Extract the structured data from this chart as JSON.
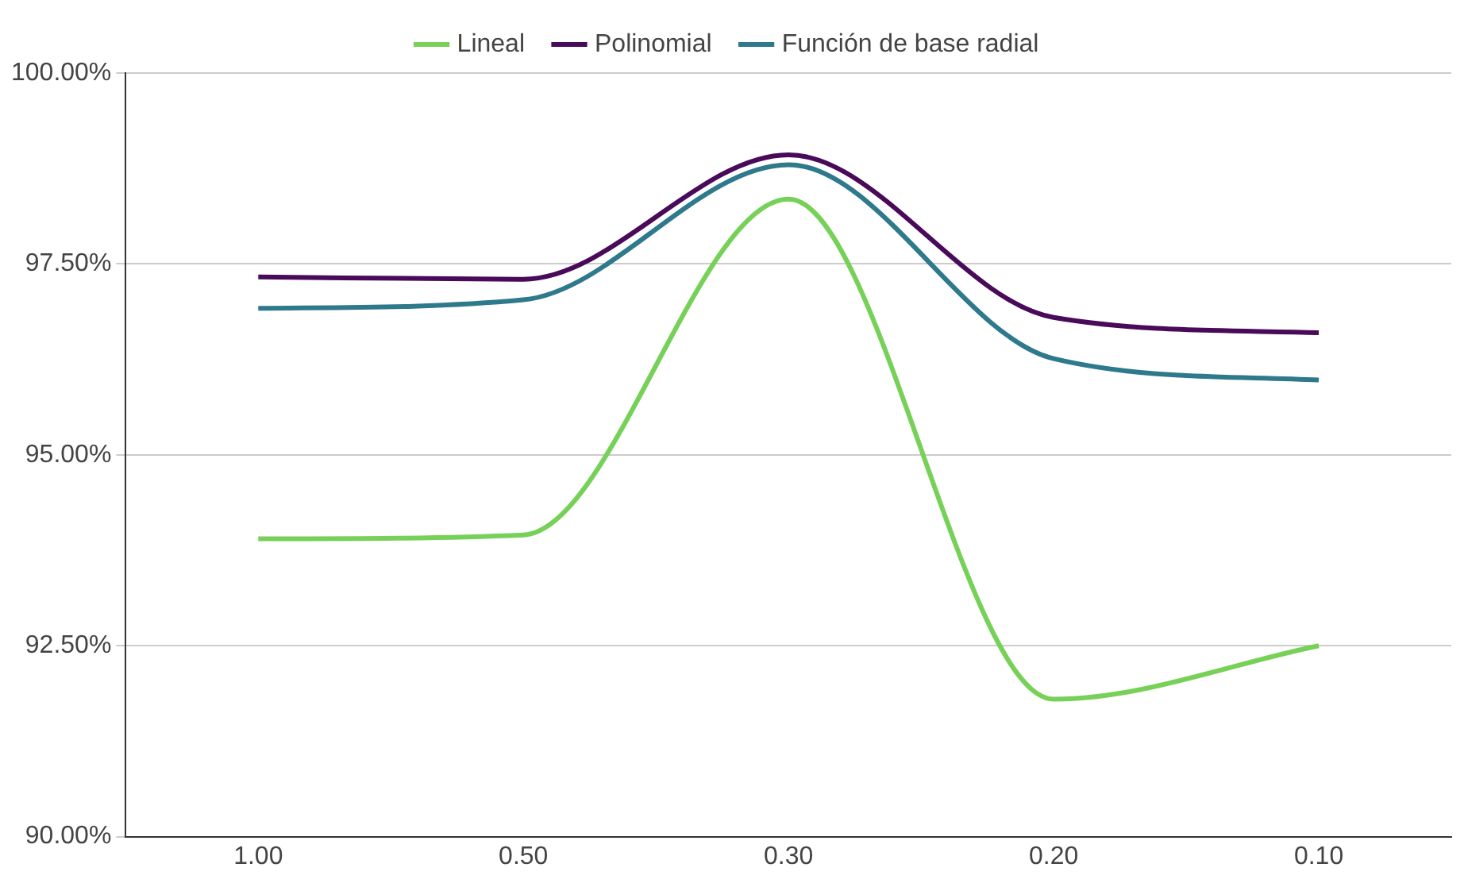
{
  "chart_data": {
    "type": "line",
    "categories": [
      "1.00",
      "0.50",
      "0.30",
      "0.20",
      "0.10"
    ],
    "series": [
      {
        "name": "Lineal",
        "color": "#77d158",
        "values": [
          93.9,
          93.95,
          98.35,
          91.8,
          92.5
        ]
      },
      {
        "name": "Polinomial",
        "color": "#4a0a5a",
        "values": [
          97.33,
          97.3,
          98.93,
          96.8,
          96.6
        ]
      },
      {
        "name": "Función de base radial",
        "color": "#2e7a8c",
        "values": [
          96.92,
          97.03,
          98.8,
          96.26,
          95.98
        ]
      }
    ],
    "ylim": [
      90,
      100
    ],
    "yticks": [
      {
        "value": 90,
        "label": "90.00%"
      },
      {
        "value": 92.5,
        "label": "92.50%"
      },
      {
        "value": 95,
        "label": "95.00%"
      },
      {
        "value": 97.5,
        "label": "97.50%"
      },
      {
        "value": 100,
        "label": "100.00%"
      }
    ],
    "grid": "y",
    "legend": "top",
    "marker": "none",
    "line_style": "solid"
  }
}
